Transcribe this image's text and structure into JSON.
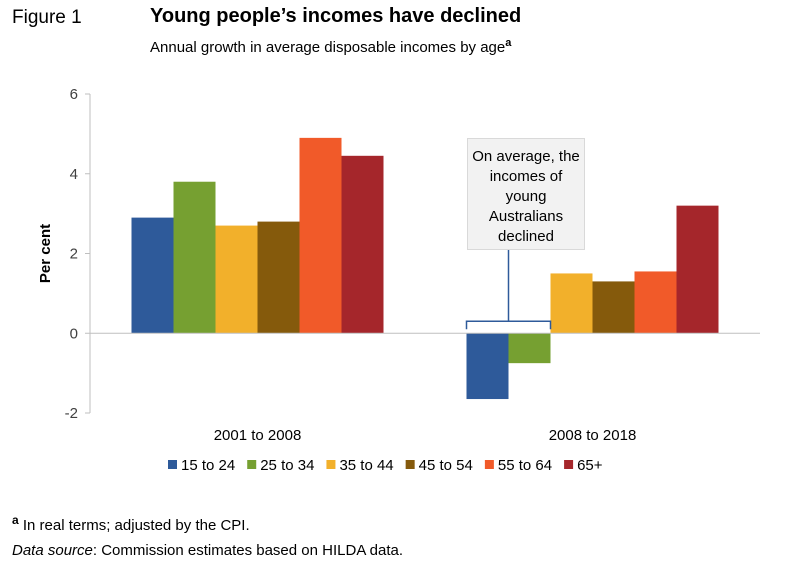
{
  "figure_label": "Figure 1",
  "title": "Young people’s incomes have declined",
  "subtitle": "Annual growth in average disposable incomes by age",
  "subtitle_mark": "a",
  "annotation": "On average, the incomes of young Australians declined",
  "footnote": {
    "mark": "a",
    "text": "In real terms; adjusted by the CPI."
  },
  "source": {
    "label": "Data source",
    "text": ": Commission estimates based on HILDA data."
  },
  "chart_data": {
    "type": "bar",
    "ylabel": "Per cent",
    "xlabel": "",
    "ylim": [
      -2,
      6
    ],
    "yticks": [
      -2,
      0,
      2,
      4,
      6
    ],
    "categories": [
      "2001 to 2008",
      "2008 to 2018"
    ],
    "series": [
      {
        "name": "15 to 24",
        "color": "#2e5a9a",
        "values": [
          2.9,
          -1.65
        ]
      },
      {
        "name": "25 to 34",
        "color": "#76a031",
        "values": [
          3.8,
          -0.75
        ]
      },
      {
        "name": "35 to 44",
        "color": "#f2b02b",
        "values": [
          2.7,
          1.5
        ]
      },
      {
        "name": "45 to 54",
        "color": "#855a0c",
        "values": [
          2.8,
          1.3
        ]
      },
      {
        "name": "55 to 64",
        "color": "#f15a29",
        "values": [
          4.9,
          1.55
        ]
      },
      {
        "name": "65+",
        "color": "#a5262b",
        "values": [
          4.45,
          3.2
        ]
      }
    ],
    "legend_position": "bottom"
  }
}
